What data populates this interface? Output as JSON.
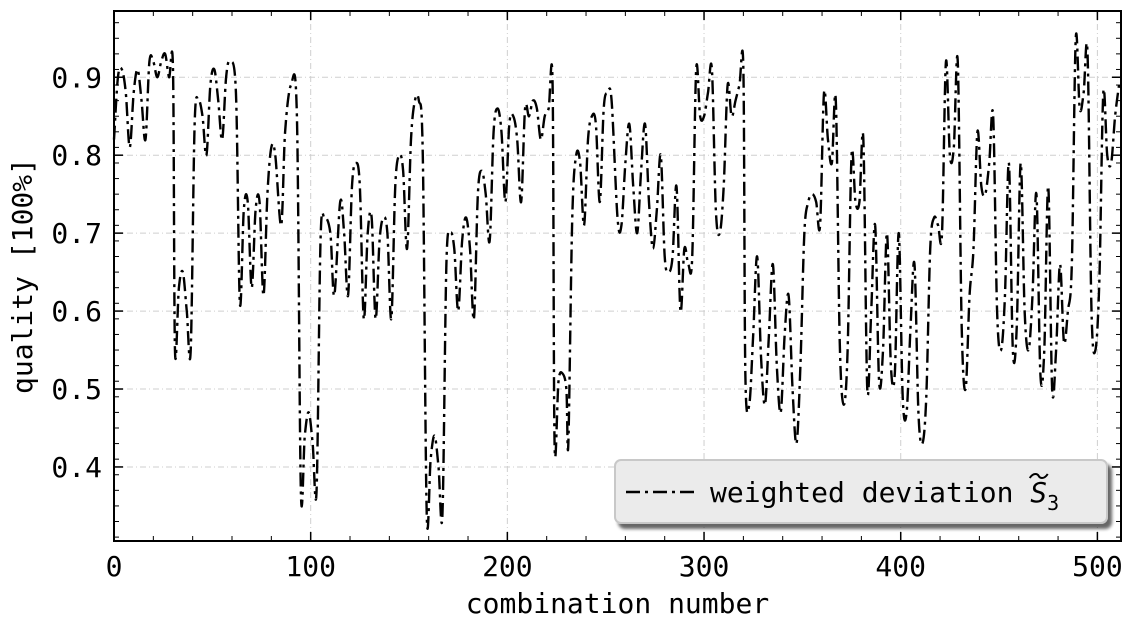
{
  "chart_data": {
    "type": "line",
    "xlabel": "combination number",
    "ylabel": "quality [100%]",
    "xlim": [
      0,
      512
    ],
    "ylim": [
      0.305,
      0.985
    ],
    "x_ticks": [
      0,
      100,
      200,
      300,
      400,
      500
    ],
    "y_ticks": [
      0.4,
      0.5,
      0.6,
      0.7,
      0.8,
      0.9
    ],
    "grid": true,
    "legend_position": "lower-right",
    "series": [
      {
        "name": "weighted deviation S̃₃",
        "legend_base": "weighted deviation ",
        "legend_symbol": "S",
        "legend_subscript": "3",
        "color": "#000000",
        "line_style": "dash-dot",
        "points": [
          [
            0,
            0.82
          ],
          [
            2,
            0.9
          ],
          [
            4,
            0.91
          ],
          [
            6,
            0.88
          ],
          [
            8,
            0.81
          ],
          [
            10,
            0.88
          ],
          [
            12,
            0.91
          ],
          [
            14,
            0.87
          ],
          [
            16,
            0.82
          ],
          [
            18,
            0.92
          ],
          [
            20,
            0.92
          ],
          [
            22,
            0.9
          ],
          [
            24,
            0.92
          ],
          [
            26,
            0.93
          ],
          [
            28,
            0.9
          ],
          [
            30,
            0.91
          ],
          [
            31,
            0.55
          ],
          [
            33,
            0.63
          ],
          [
            35,
            0.65
          ],
          [
            37,
            0.6
          ],
          [
            39,
            0.55
          ],
          [
            41,
            0.84
          ],
          [
            43,
            0.87
          ],
          [
            45,
            0.85
          ],
          [
            47,
            0.8
          ],
          [
            49,
            0.89
          ],
          [
            51,
            0.91
          ],
          [
            53,
            0.87
          ],
          [
            55,
            0.82
          ],
          [
            57,
            0.9
          ],
          [
            59,
            0.92
          ],
          [
            62,
            0.88
          ],
          [
            64,
            0.61
          ],
          [
            66,
            0.73
          ],
          [
            68,
            0.74
          ],
          [
            70,
            0.63
          ],
          [
            72,
            0.73
          ],
          [
            74,
            0.74
          ],
          [
            76,
            0.62
          ],
          [
            78,
            0.75
          ],
          [
            80,
            0.81
          ],
          [
            82,
            0.8
          ],
          [
            85,
            0.71
          ],
          [
            87,
            0.83
          ],
          [
            90,
            0.89
          ],
          [
            93,
            0.85
          ],
          [
            95,
            0.37
          ],
          [
            97,
            0.44
          ],
          [
            99,
            0.47
          ],
          [
            101,
            0.43
          ],
          [
            103,
            0.37
          ],
          [
            105,
            0.69
          ],
          [
            107,
            0.72
          ],
          [
            110,
            0.7
          ],
          [
            112,
            0.62
          ],
          [
            115,
            0.74
          ],
          [
            117,
            0.7
          ],
          [
            119,
            0.62
          ],
          [
            121,
            0.76
          ],
          [
            123,
            0.79
          ],
          [
            125,
            0.76
          ],
          [
            127,
            0.59
          ],
          [
            129,
            0.7
          ],
          [
            131,
            0.72
          ],
          [
            133,
            0.59
          ],
          [
            135,
            0.69
          ],
          [
            137,
            0.72
          ],
          [
            139,
            0.7
          ],
          [
            141,
            0.59
          ],
          [
            143,
            0.76
          ],
          [
            145,
            0.8
          ],
          [
            147,
            0.78
          ],
          [
            149,
            0.68
          ],
          [
            151,
            0.82
          ],
          [
            153,
            0.87
          ],
          [
            155,
            0.87
          ],
          [
            157,
            0.8
          ],
          [
            159,
            0.34
          ],
          [
            161,
            0.41
          ],
          [
            163,
            0.44
          ],
          [
            165,
            0.4
          ],
          [
            167,
            0.34
          ],
          [
            169,
            0.66
          ],
          [
            171,
            0.7
          ],
          [
            173,
            0.68
          ],
          [
            175,
            0.6
          ],
          [
            177,
            0.69
          ],
          [
            179,
            0.72
          ],
          [
            181,
            0.68
          ],
          [
            183,
            0.59
          ],
          [
            185,
            0.75
          ],
          [
            187,
            0.78
          ],
          [
            189,
            0.75
          ],
          [
            191,
            0.69
          ],
          [
            193,
            0.83
          ],
          [
            195,
            0.86
          ],
          [
            197,
            0.83
          ],
          [
            199,
            0.74
          ],
          [
            201,
            0.84
          ],
          [
            203,
            0.85
          ],
          [
            205,
            0.82
          ],
          [
            207,
            0.74
          ],
          [
            209,
            0.86
          ],
          [
            211,
            0.85
          ],
          [
            213,
            0.87
          ],
          [
            215,
            0.86
          ],
          [
            217,
            0.82
          ],
          [
            219,
            0.85
          ],
          [
            221,
            0.86
          ],
          [
            223,
            0.89
          ],
          [
            224,
            0.43
          ],
          [
            226,
            0.51
          ],
          [
            228,
            0.52
          ],
          [
            230,
            0.5
          ],
          [
            231,
            0.43
          ],
          [
            233,
            0.72
          ],
          [
            235,
            0.8
          ],
          [
            237,
            0.79
          ],
          [
            239,
            0.71
          ],
          [
            241,
            0.82
          ],
          [
            243,
            0.85
          ],
          [
            245,
            0.84
          ],
          [
            247,
            0.74
          ],
          [
            249,
            0.86
          ],
          [
            251,
            0.88
          ],
          [
            253,
            0.87
          ],
          [
            256,
            0.72
          ],
          [
            258,
            0.71
          ],
          [
            260,
            0.79
          ],
          [
            262,
            0.84
          ],
          [
            264,
            0.76
          ],
          [
            266,
            0.7
          ],
          [
            268,
            0.78
          ],
          [
            270,
            0.84
          ],
          [
            272,
            0.74
          ],
          [
            274,
            0.68
          ],
          [
            276,
            0.73
          ],
          [
            278,
            0.8
          ],
          [
            280,
            0.67
          ],
          [
            282,
            0.65
          ],
          [
            284,
            0.67
          ],
          [
            286,
            0.76
          ],
          [
            288,
            0.6
          ],
          [
            290,
            0.68
          ],
          [
            292,
            0.66
          ],
          [
            294,
            0.67
          ],
          [
            296,
            0.91
          ],
          [
            298,
            0.85
          ],
          [
            300,
            0.85
          ],
          [
            302,
            0.88
          ],
          [
            304,
            0.91
          ],
          [
            306,
            0.73
          ],
          [
            308,
            0.7
          ],
          [
            310,
            0.76
          ],
          [
            312,
            0.89
          ],
          [
            314,
            0.85
          ],
          [
            316,
            0.87
          ],
          [
            318,
            0.89
          ],
          [
            320,
            0.91
          ],
          [
            321,
            0.52
          ],
          [
            323,
            0.48
          ],
          [
            325,
            0.57
          ],
          [
            327,
            0.67
          ],
          [
            329,
            0.54
          ],
          [
            331,
            0.48
          ],
          [
            333,
            0.57
          ],
          [
            335,
            0.66
          ],
          [
            337,
            0.53
          ],
          [
            339,
            0.47
          ],
          [
            341,
            0.57
          ],
          [
            343,
            0.62
          ],
          [
            345,
            0.5
          ],
          [
            347,
            0.43
          ],
          [
            349,
            0.53
          ],
          [
            351,
            0.7
          ],
          [
            353,
            0.74
          ],
          [
            355,
            0.75
          ],
          [
            357,
            0.74
          ],
          [
            359,
            0.71
          ],
          [
            361,
            0.88
          ],
          [
            363,
            0.82
          ],
          [
            365,
            0.79
          ],
          [
            367,
            0.87
          ],
          [
            369,
            0.56
          ],
          [
            371,
            0.48
          ],
          [
            373,
            0.55
          ],
          [
            375,
            0.8
          ],
          [
            377,
            0.74
          ],
          [
            379,
            0.74
          ],
          [
            381,
            0.82
          ],
          [
            383,
            0.5
          ],
          [
            385,
            0.6
          ],
          [
            387,
            0.71
          ],
          [
            389,
            0.51
          ],
          [
            391,
            0.55
          ],
          [
            393,
            0.7
          ],
          [
            395,
            0.53
          ],
          [
            397,
            0.52
          ],
          [
            399,
            0.7
          ],
          [
            401,
            0.49
          ],
          [
            403,
            0.47
          ],
          [
            405,
            0.58
          ],
          [
            407,
            0.66
          ],
          [
            409,
            0.47
          ],
          [
            411,
            0.43
          ],
          [
            413,
            0.49
          ],
          [
            415,
            0.68
          ],
          [
            417,
            0.72
          ],
          [
            419,
            0.71
          ],
          [
            421,
            0.7
          ],
          [
            423,
            0.92
          ],
          [
            425,
            0.8
          ],
          [
            427,
            0.81
          ],
          [
            429,
            0.92
          ],
          [
            431,
            0.58
          ],
          [
            433,
            0.5
          ],
          [
            435,
            0.62
          ],
          [
            437,
            0.68
          ],
          [
            439,
            0.83
          ],
          [
            441,
            0.76
          ],
          [
            443,
            0.75
          ],
          [
            445,
            0.79
          ],
          [
            447,
            0.85
          ],
          [
            449,
            0.6
          ],
          [
            451,
            0.55
          ],
          [
            453,
            0.62
          ],
          [
            455,
            0.79
          ],
          [
            457,
            0.55
          ],
          [
            459,
            0.58
          ],
          [
            461,
            0.79
          ],
          [
            463,
            0.6
          ],
          [
            465,
            0.55
          ],
          [
            467,
            0.62
          ],
          [
            469,
            0.75
          ],
          [
            471,
            0.52
          ],
          [
            473,
            0.55
          ],
          [
            475,
            0.76
          ],
          [
            477,
            0.5
          ],
          [
            479,
            0.55
          ],
          [
            481,
            0.66
          ],
          [
            483,
            0.56
          ],
          [
            485,
            0.6
          ],
          [
            487,
            0.66
          ],
          [
            489,
            0.95
          ],
          [
            491,
            0.86
          ],
          [
            493,
            0.88
          ],
          [
            495,
            0.93
          ],
          [
            497,
            0.6
          ],
          [
            499,
            0.55
          ],
          [
            501,
            0.64
          ],
          [
            503,
            0.88
          ],
          [
            505,
            0.8
          ],
          [
            507,
            0.79
          ],
          [
            509,
            0.85
          ],
          [
            511,
            0.89
          ]
        ]
      }
    ]
  }
}
